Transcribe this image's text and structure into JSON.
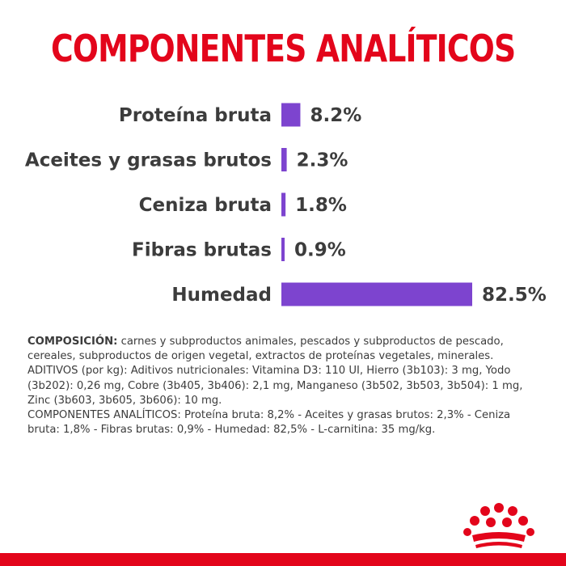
{
  "title": "COMPONENTES ANALÍTICOS",
  "colors": {
    "accent": "#e3051b",
    "bar": "#7d44cf",
    "text": "#3c3c3c"
  },
  "chart_data": {
    "type": "bar",
    "orientation": "horizontal",
    "categories": [
      "Proteína bruta",
      "Aceites y grasas brutos",
      "Ceniza bruta",
      "Fibras brutas",
      "Humedad"
    ],
    "values": [
      8.2,
      2.3,
      1.8,
      0.9,
      82.5
    ],
    "value_labels": [
      "8.2%",
      "2.3%",
      "1.8%",
      "0.9%",
      "82.5%"
    ],
    "unit": "%",
    "grid": false,
    "legend": "none"
  },
  "composition": {
    "heading": "COMPOSICIÓN:",
    "text": " carnes y subproductos animales, pescados y subproductos de pescado, cereales, subproductos de origen vegetal, extractos de proteínas vegetales, minerales.",
    "additives": "ADITIVOS (por kg): Aditivos nutricionales: Vitamina D3: 110 UI, Hierro (3b103): 3 mg, Yodo (3b202): 0,26 mg, Cobre (3b405, 3b406): 2,1 mg, Manganeso (3b502, 3b503, 3b504): 1 mg, Zinc (3b603, 3b605, 3b606): 10 mg.",
    "analytical": "COMPONENTES ANALÍTICOS: Proteína bruta: 8,2% - Aceites y grasas brutos: 2,3% - Ceniza bruta: 1,8% - Fibras brutas: 0,9% - Humedad: 82,5% - L-carnitina: 35 mg/kg."
  },
  "logo": {
    "icon": "royal-crown-icon"
  }
}
